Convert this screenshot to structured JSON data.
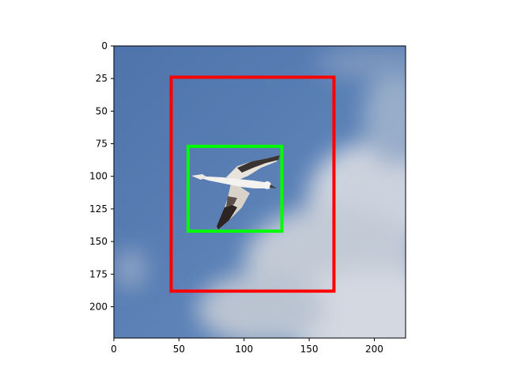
{
  "image": {
    "description_icon": "bird-in-flight-photo",
    "sky_color": "#5a7fb3",
    "cloud_color": "#d2d6dc"
  },
  "axes": {
    "x_ticks": [
      0,
      50,
      100,
      150,
      200
    ],
    "y_ticks": [
      0,
      25,
      50,
      75,
      100,
      125,
      150,
      175,
      200
    ],
    "x_range": [
      0,
      224
    ],
    "y_range": [
      0,
      224
    ],
    "y_inverted": true
  },
  "boxes": [
    {
      "name": "red-box",
      "color": "#ff0000",
      "x0": 44,
      "y0": 24,
      "x1": 169,
      "y1": 188
    },
    {
      "name": "green-box",
      "color": "#00ff00",
      "x0": 57,
      "y0": 77,
      "x1": 129,
      "y1": 142
    }
  ]
}
